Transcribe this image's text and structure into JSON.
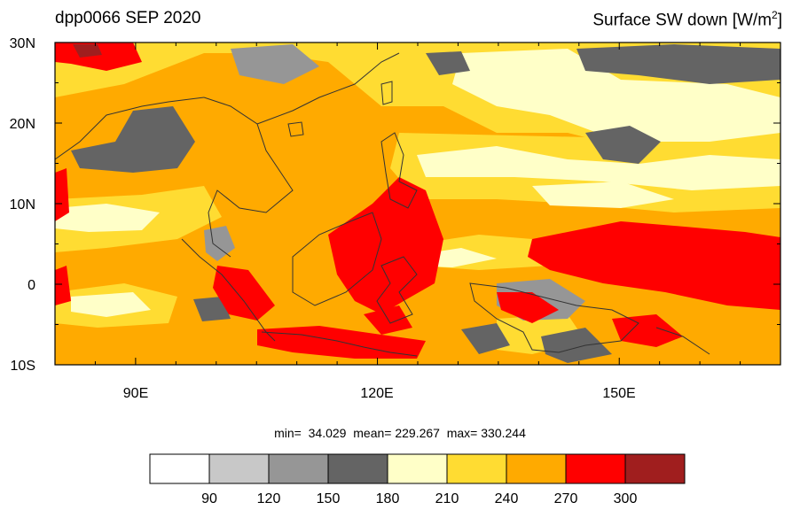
{
  "header": {
    "title": "dpp0066 SEP 2020",
    "variable": "Surface SW down [W/m",
    "variable_sup": "2",
    "variable_close": "]"
  },
  "axes": {
    "lon_ticks": [
      "90E",
      "120E",
      "150E"
    ],
    "lat_ticks": [
      "30N",
      "20N",
      "10N",
      "0",
      "10S"
    ]
  },
  "stats": {
    "min_label": "min=",
    "min": "34.029",
    "mean_label": "mean=",
    "mean": "229.267",
    "max_label": "max=",
    "max": "330.244"
  },
  "colorbar": {
    "colors": [
      "#ffffff",
      "#c8c8c8",
      "#969696",
      "#646464",
      "#ffffc8",
      "#ffdc32",
      "#ffaa00",
      "#ff0000",
      "#a01e1e"
    ],
    "labels": [
      "90",
      "120",
      "150",
      "180",
      "210",
      "240",
      "270",
      "300"
    ]
  }
}
